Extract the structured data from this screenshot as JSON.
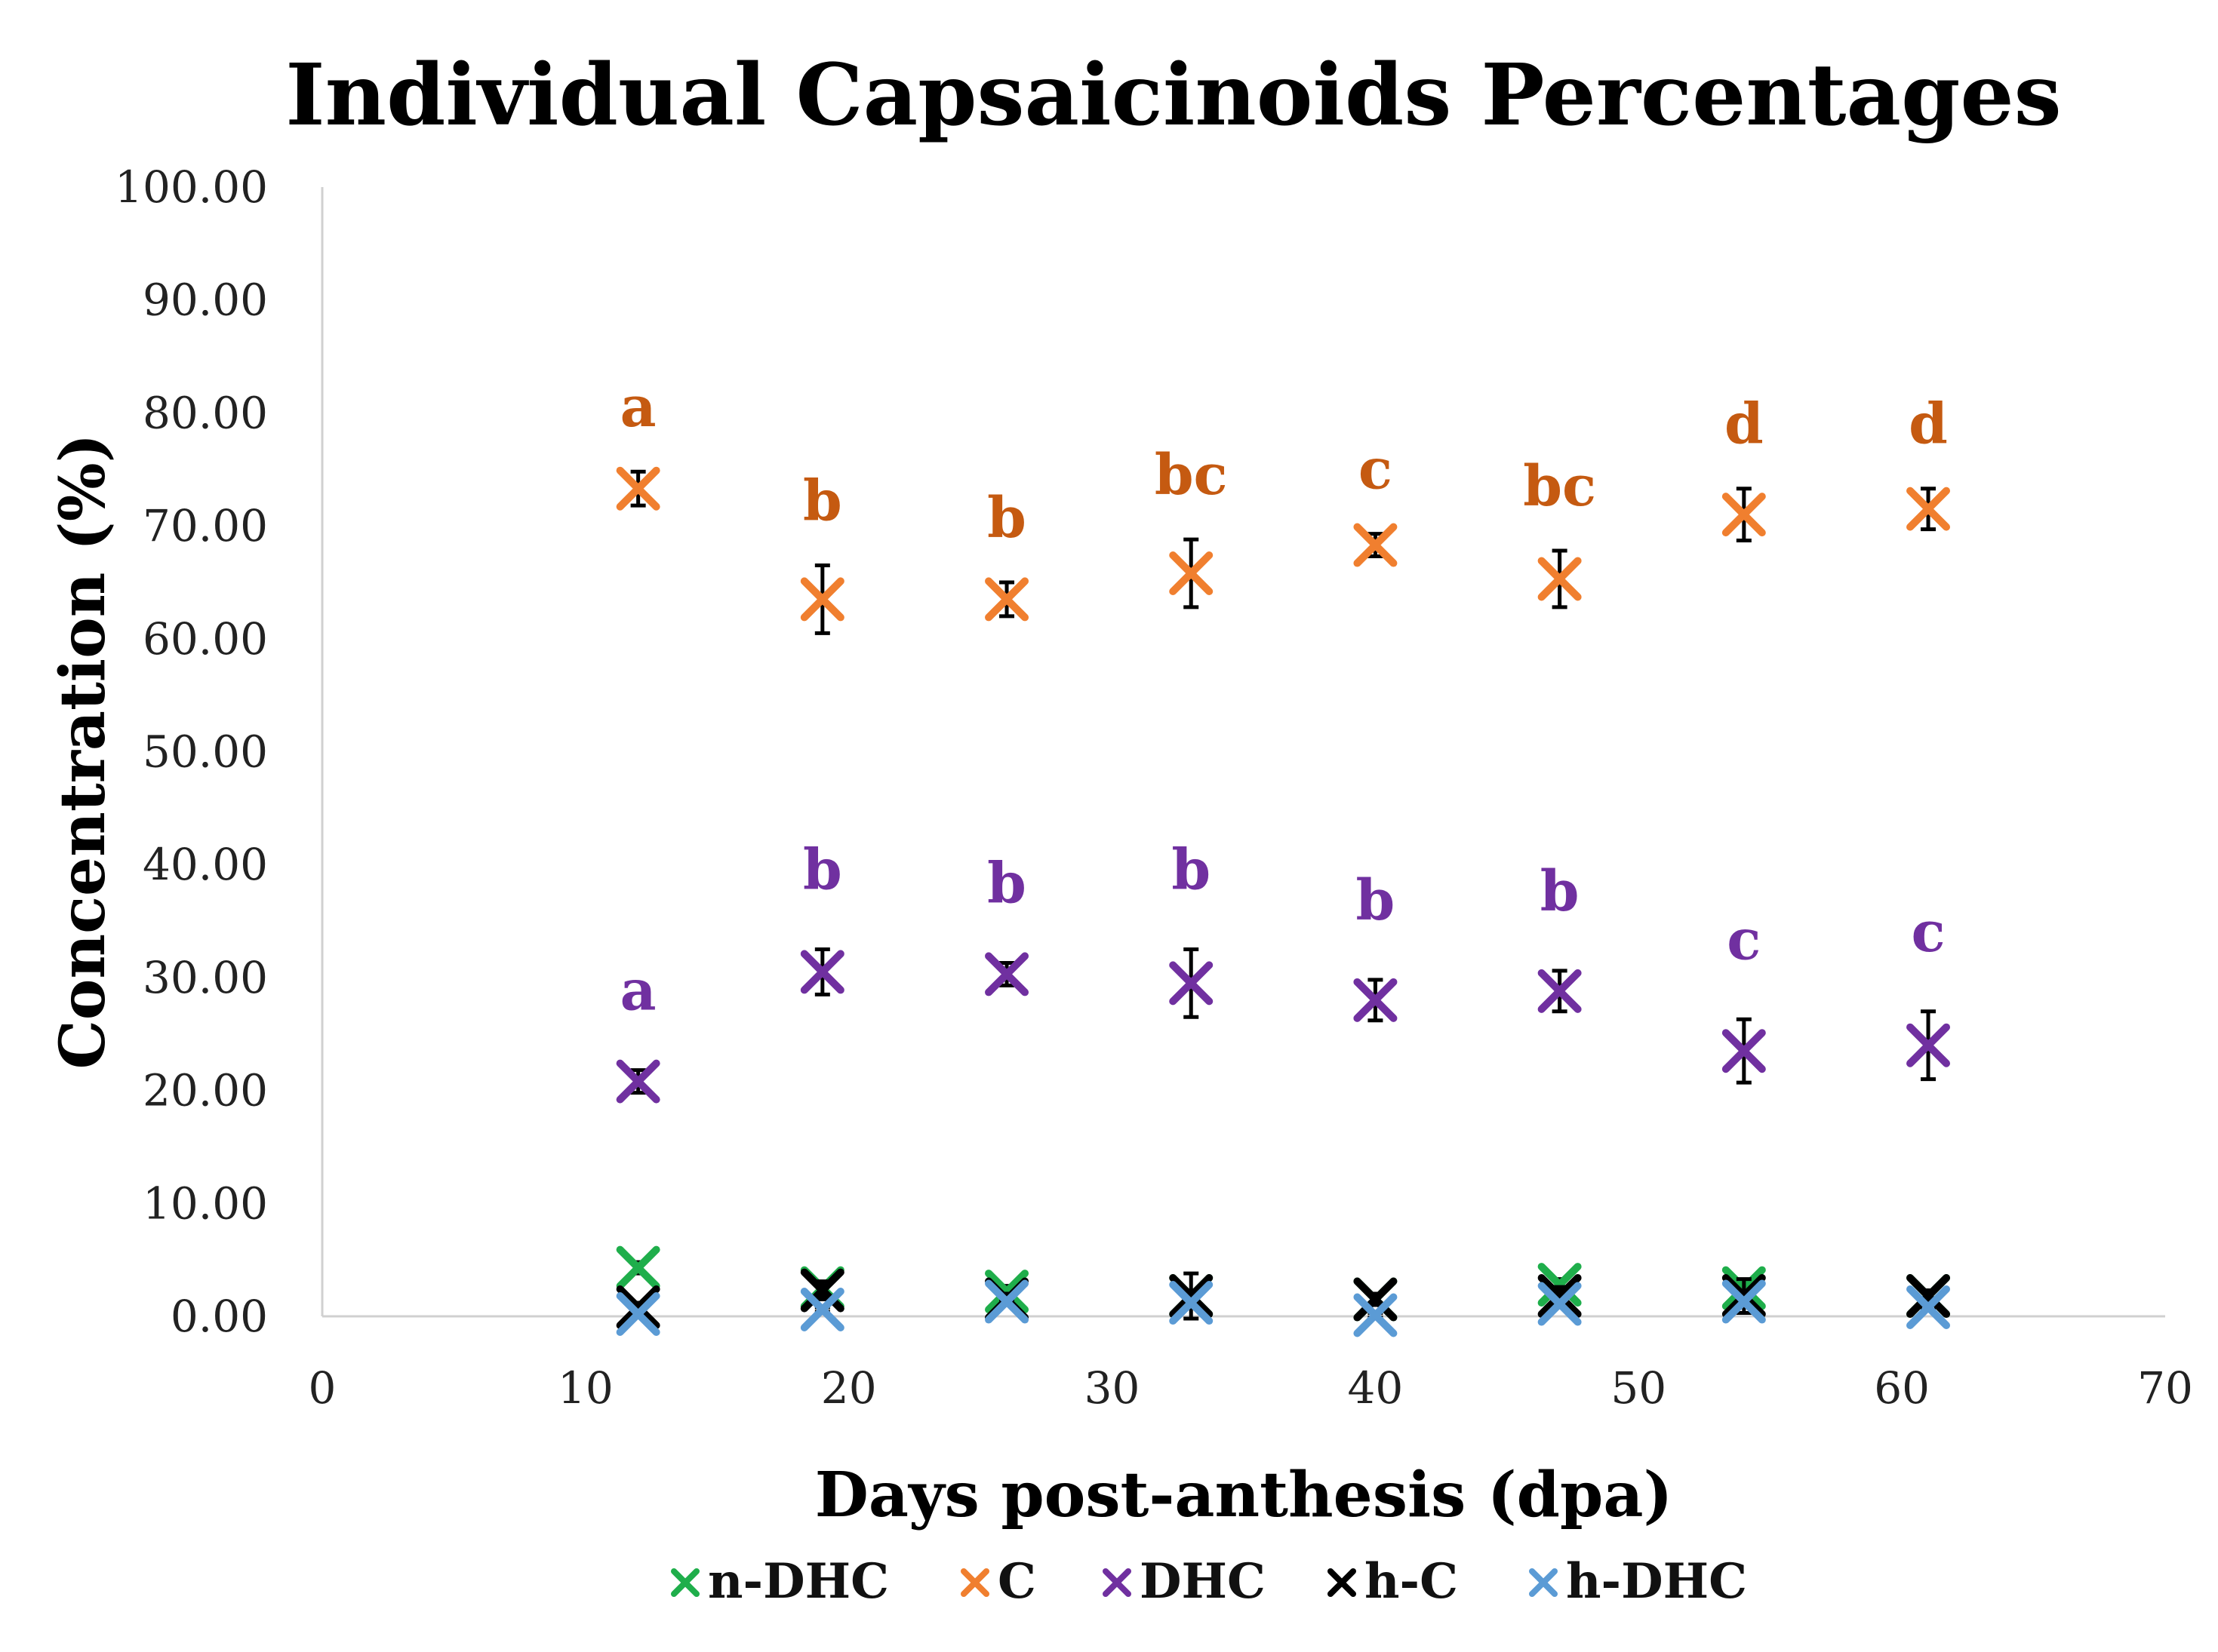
{
  "chart_data": {
    "type": "scatter",
    "title": "Individual Capsaicinoids Percentages",
    "xlabel": "Days post-anthesis (dpa)",
    "ylabel": "Concentration (%)",
    "xlim": [
      0,
      70
    ],
    "ylim": [
      0,
      100
    ],
    "x_ticks": [
      "0",
      "10",
      "20",
      "30",
      "40",
      "50",
      "60",
      "70"
    ],
    "y_ticks": [
      "0.00",
      "10.00",
      "20.00",
      "30.00",
      "40.00",
      "50.00",
      "60.00",
      "70.00",
      "80.00",
      "90.00",
      "100.00"
    ],
    "grid": false,
    "legend_position": "bottom",
    "x": [
      12,
      19,
      26,
      33,
      40,
      47,
      54,
      61
    ],
    "series": [
      {
        "name": "n-DHC",
        "color": "#1fae4b",
        "values": [
          4.3,
          2.5,
          2.2,
          1.8,
          1.5,
          2.8,
          2.5,
          1.8
        ],
        "errors": [
          0.5,
          0.5,
          0.5,
          0.5,
          0.5,
          0.5,
          0.5,
          0.5
        ]
      },
      {
        "name": "C",
        "color": "#f07f2f",
        "values": [
          73.3,
          63.5,
          63.5,
          65.8,
          68.3,
          65.3,
          71.0,
          71.5
        ],
        "errors": [
          1.5,
          3.0,
          1.5,
          3.0,
          1.0,
          2.5,
          2.3,
          1.8
        ]
      },
      {
        "name": "DHC",
        "color": "#7030a0",
        "values": [
          20.8,
          30.5,
          30.3,
          29.5,
          28.0,
          28.8,
          23.5,
          24.0
        ],
        "errors": [
          1.0,
          2.0,
          1.0,
          3.0,
          1.8,
          1.8,
          2.8,
          3.0
        ]
      },
      {
        "name": "h-C",
        "color": "#000000",
        "values": [
          0.8,
          2.3,
          1.5,
          1.8,
          1.5,
          1.8,
          1.8,
          1.8
        ],
        "errors": [
          0.4,
          0.8,
          0.5,
          2.0,
          0.5,
          0.8,
          1.5,
          0.5
        ]
      },
      {
        "name": "h-DHC",
        "color": "#5b9bd5",
        "values": [
          0.2,
          0.6,
          1.3,
          1.2,
          0.1,
          1.1,
          1.3,
          0.8
        ],
        "errors": [
          0.2,
          0.2,
          0.2,
          0.2,
          0.2,
          0.2,
          0.2,
          0.2
        ]
      }
    ],
    "annotations": {
      "C": {
        "color": "#c55a11",
        "labels": [
          "a",
          "b",
          "b",
          "bc",
          "c",
          "bc",
          "d",
          "d"
        ]
      },
      "DHC": {
        "color": "#7030a0",
        "labels": [
          "a",
          "b",
          "b",
          "b",
          "b",
          "b",
          "c",
          "c"
        ]
      }
    }
  }
}
